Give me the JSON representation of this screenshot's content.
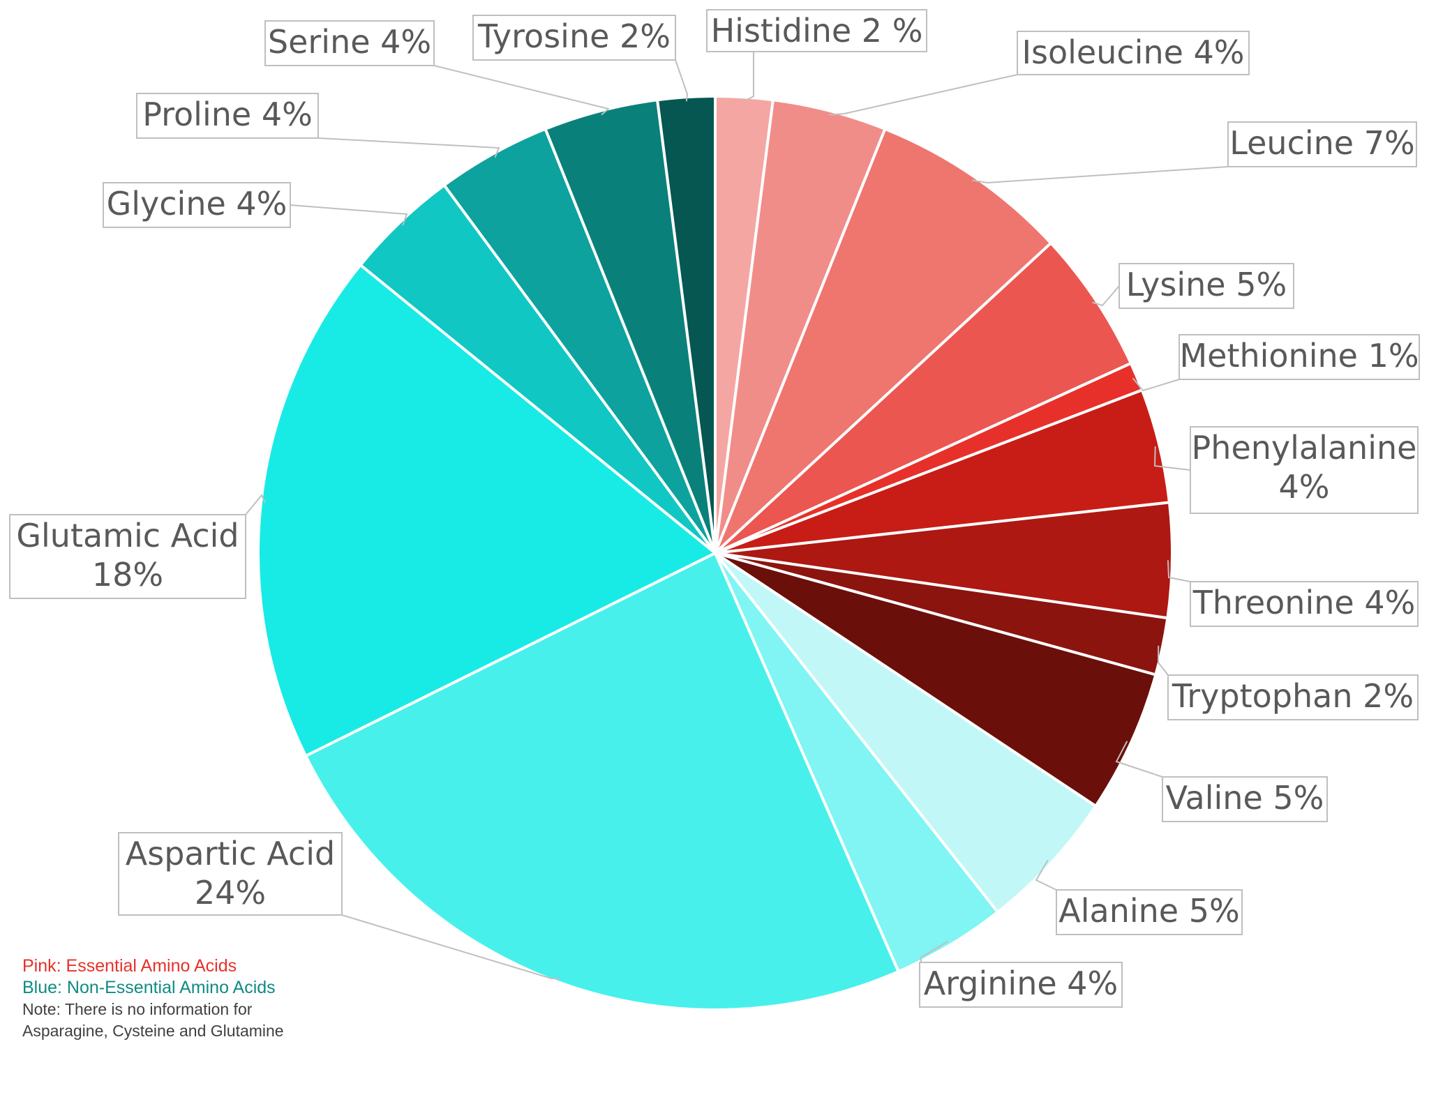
{
  "chart_data": {
    "type": "pie",
    "title": "",
    "slices": [
      {
        "label": "Histidine 2 %",
        "value": 2,
        "color": "#f4a6a3"
      },
      {
        "label": "Isoleucine 4%",
        "value": 4,
        "color": "#f18d89"
      },
      {
        "label": "Leucine 7%",
        "value": 7,
        "color": "#ee766f"
      },
      {
        "label": "Lysine 5%",
        "value": 5,
        "color": "#ec5650"
      },
      {
        "label": "Methionine 1%",
        "value": 1,
        "color": "#e8302a"
      },
      {
        "label": "Phenylalanine 4%",
        "value": 4,
        "color": "#c81d16"
      },
      {
        "label": "Threonine 4%",
        "value": 4,
        "color": "#ad1812"
      },
      {
        "label": "Tryptophan 2%",
        "value": 2,
        "color": "#8b140f"
      },
      {
        "label": "Valine 5%",
        "value": 5,
        "color": "#6b0f0b"
      },
      {
        "label": "Alanine 5%",
        "value": 5,
        "color": "#c2f7f7"
      },
      {
        "label": "Arginine 4%",
        "value": 4,
        "color": "#80f5f3"
      },
      {
        "label": "Aspartic Acid 24%",
        "value": 24,
        "color": "#48f0ec"
      },
      {
        "label": "Glutamic Acid 18%",
        "value": 18,
        "color": "#18ebe6"
      },
      {
        "label": "Glycine 4%",
        "value": 4,
        "color": "#11c7c4"
      },
      {
        "label": "Proline 4%",
        "value": 4,
        "color": "#0da29e"
      },
      {
        "label": "Serine 4%",
        "value": 4,
        "color": "#0a807b"
      },
      {
        "label": "Tyrosine 2%",
        "value": 2,
        "color": "#065752"
      }
    ]
  },
  "notes": {
    "essential": "Pink: Essential Amino Acids",
    "nonessential": "Blue: Non-Essential Amino Acids",
    "text": "Note: There is no information for Asparagine, Cysteine and Glutamine"
  }
}
